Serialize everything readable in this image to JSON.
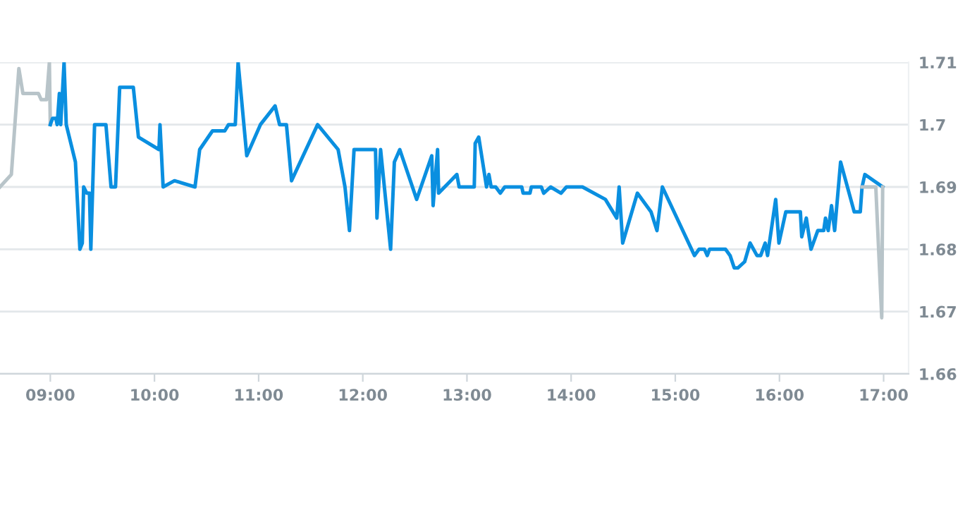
{
  "chart_data": {
    "type": "line",
    "series": [
      {
        "color": "#b8c4c9",
        "x": [
          8.517,
          8.626,
          8.698,
          8.737,
          8.886,
          8.912,
          8.964,
          8.991,
          9.0
        ],
        "values": [
          1.69,
          1.692,
          1.709,
          1.705,
          1.705,
          1.704,
          1.704,
          1.71,
          1.7
        ]
      },
      {
        "color": "#0a8fe0",
        "x": [
          9.0,
          9.021,
          9.053,
          9.066,
          9.087,
          9.1,
          9.132,
          9.153,
          9.241,
          9.284,
          9.307,
          9.32,
          9.35,
          9.376,
          9.389,
          9.425,
          9.534,
          9.583,
          9.626,
          9.666,
          9.797,
          9.846,
          10.043,
          10.053,
          10.083,
          10.192,
          10.389,
          10.434,
          10.557,
          10.675,
          10.711,
          10.776,
          10.803,
          10.886,
          11.017,
          11.158,
          11.201,
          11.267,
          11.316,
          11.566,
          11.763,
          11.829,
          11.872,
          11.916,
          12.122,
          12.136,
          12.171,
          12.267,
          12.303,
          12.355,
          12.517,
          12.662,
          12.675,
          12.718,
          12.728,
          12.903,
          12.925,
          13.07,
          13.079,
          13.113,
          13.188,
          13.211,
          13.232,
          13.276,
          13.32,
          13.363,
          13.526,
          13.539,
          13.605,
          13.618,
          13.714,
          13.737,
          13.803,
          13.903,
          13.955,
          14.109,
          14.329,
          14.438,
          14.461,
          14.495,
          14.636,
          14.767,
          14.824,
          14.876,
          15.184,
          15.228,
          15.28,
          15.307,
          15.329,
          15.482,
          15.526,
          15.566,
          15.6,
          15.666,
          15.718,
          15.784,
          15.82,
          15.863,
          15.886,
          15.964,
          15.995,
          16.061,
          16.201,
          16.214,
          16.258,
          16.303,
          16.368,
          16.425,
          16.442,
          16.468,
          16.5,
          16.53,
          16.587,
          16.718,
          16.776,
          16.793,
          16.82,
          16.991
        ],
        "values": [
          1.7,
          1.701,
          1.701,
          1.7,
          1.705,
          1.7,
          1.71,
          1.7,
          1.694,
          1.68,
          1.681,
          1.69,
          1.689,
          1.689,
          1.68,
          1.7,
          1.7,
          1.69,
          1.69,
          1.706,
          1.706,
          1.698,
          1.696,
          1.7,
          1.69,
          1.691,
          1.69,
          1.696,
          1.699,
          1.699,
          1.7,
          1.7,
          1.71,
          1.695,
          1.7,
          1.703,
          1.7,
          1.7,
          1.691,
          1.7,
          1.696,
          1.69,
          1.683,
          1.696,
          1.696,
          1.685,
          1.696,
          1.68,
          1.694,
          1.696,
          1.688,
          1.695,
          1.687,
          1.696,
          1.689,
          1.692,
          1.69,
          1.69,
          1.697,
          1.698,
          1.69,
          1.692,
          1.69,
          1.69,
          1.689,
          1.69,
          1.69,
          1.689,
          1.689,
          1.69,
          1.69,
          1.689,
          1.69,
          1.689,
          1.69,
          1.69,
          1.688,
          1.685,
          1.69,
          1.681,
          1.689,
          1.686,
          1.683,
          1.69,
          1.679,
          1.68,
          1.68,
          1.679,
          1.68,
          1.68,
          1.679,
          1.677,
          1.677,
          1.678,
          1.681,
          1.679,
          1.679,
          1.681,
          1.679,
          1.688,
          1.681,
          1.686,
          1.686,
          1.682,
          1.685,
          1.68,
          1.683,
          1.683,
          1.685,
          1.683,
          1.687,
          1.683,
          1.694,
          1.686,
          1.686,
          1.69,
          1.692,
          1.69
        ]
      },
      {
        "color": "#b8c4c9",
        "x": [
          16.793,
          16.925,
          16.982,
          16.991
        ],
        "values": [
          1.69,
          1.69,
          1.669,
          1.69
        ]
      }
    ],
    "xlim": [
      8.517,
      17.24
    ],
    "xticks": [
      {
        "value": 9,
        "label": "09:00"
      },
      {
        "value": 10,
        "label": "10:00"
      },
      {
        "value": 11,
        "label": "11:00"
      },
      {
        "value": 12,
        "label": "12:00"
      },
      {
        "value": 13,
        "label": "13:00"
      },
      {
        "value": 14,
        "label": "14:00"
      },
      {
        "value": 15,
        "label": "15:00"
      },
      {
        "value": 16,
        "label": "16:00"
      },
      {
        "value": 17,
        "label": "17:00"
      }
    ],
    "ylim": [
      1.66,
      1.71
    ],
    "yticks": [
      1.66,
      1.67,
      1.68,
      1.69,
      1.7,
      1.71
    ],
    "grid": "y",
    "legend": false,
    "marker": "none",
    "line_style": "solid"
  }
}
